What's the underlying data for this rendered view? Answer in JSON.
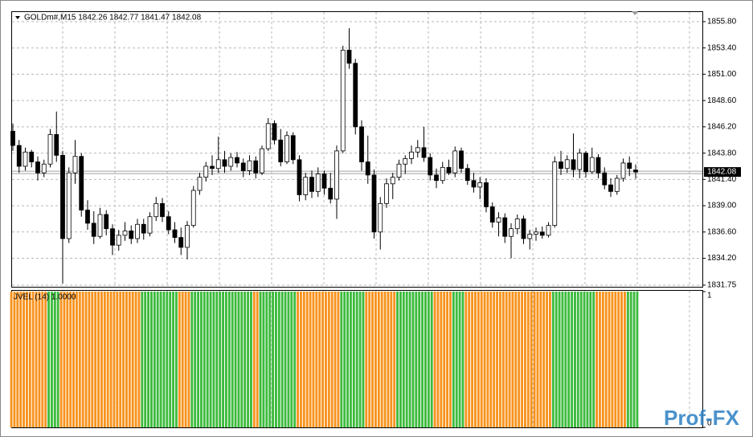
{
  "chart_data": [
    {
      "type": "candlestick",
      "title": "GOLDm#,M15  1842.26 1842.77 1841.47 1842.08",
      "ohlc": [
        [
          1845.8,
          1846.5,
          1844.0,
          1844.5
        ],
        [
          1844.5,
          1845.0,
          1842.0,
          1842.6
        ],
        [
          1842.6,
          1844.3,
          1842.2,
          1843.9
        ],
        [
          1843.9,
          1844.1,
          1842.5,
          1843.0
        ],
        [
          1843.0,
          1843.5,
          1841.3,
          1842.0
        ],
        [
          1842.0,
          1843.2,
          1841.6,
          1842.8
        ],
        [
          1842.8,
          1846.0,
          1842.5,
          1845.5
        ],
        [
          1845.5,
          1847.6,
          1843.0,
          1843.6
        ],
        [
          1843.6,
          1844.0,
          1831.9,
          1836.0
        ],
        [
          1836.0,
          1842.5,
          1835.6,
          1842.0
        ],
        [
          1842.0,
          1845.0,
          1841.0,
          1843.5
        ],
        [
          1843.5,
          1843.8,
          1838.0,
          1838.6
        ],
        [
          1838.6,
          1839.5,
          1836.8,
          1837.4
        ],
        [
          1837.4,
          1838.5,
          1835.5,
          1836.2
        ],
        [
          1836.2,
          1838.8,
          1836.0,
          1838.2
        ],
        [
          1838.2,
          1838.6,
          1836.3,
          1836.9
        ],
        [
          1836.9,
          1837.3,
          1834.5,
          1835.4
        ],
        [
          1835.4,
          1836.8,
          1834.9,
          1836.3
        ],
        [
          1836.3,
          1837.5,
          1835.8,
          1836.7
        ],
        [
          1836.7,
          1837.2,
          1835.5,
          1836.0
        ],
        [
          1836.0,
          1837.8,
          1835.6,
          1837.3
        ],
        [
          1837.3,
          1837.8,
          1835.9,
          1836.5
        ],
        [
          1836.5,
          1838.4,
          1836.2,
          1838.0
        ],
        [
          1838.0,
          1839.8,
          1837.6,
          1839.2
        ],
        [
          1839.2,
          1839.7,
          1837.5,
          1838.0
        ],
        [
          1838.0,
          1838.5,
          1836.4,
          1836.8
        ],
        [
          1836.8,
          1837.5,
          1835.6,
          1836.1
        ],
        [
          1836.1,
          1837.0,
          1834.5,
          1835.2
        ],
        [
          1835.2,
          1837.6,
          1834.1,
          1837.2
        ],
        [
          1837.2,
          1840.8,
          1837.0,
          1840.4
        ],
        [
          1840.4,
          1842.0,
          1840.0,
          1841.6
        ],
        [
          1841.6,
          1843.0,
          1841.2,
          1842.6
        ],
        [
          1842.6,
          1843.6,
          1841.8,
          1842.4
        ],
        [
          1842.4,
          1845.3,
          1842.0,
          1843.2
        ],
        [
          1843.2,
          1844.0,
          1842.0,
          1842.6
        ],
        [
          1842.6,
          1843.8,
          1842.2,
          1843.4
        ],
        [
          1843.4,
          1843.9,
          1842.5,
          1842.9
        ],
        [
          1842.9,
          1843.3,
          1841.6,
          1842.2
        ],
        [
          1842.2,
          1843.6,
          1841.8,
          1843.1
        ],
        [
          1843.1,
          1843.5,
          1841.5,
          1842.0
        ],
        [
          1842.0,
          1844.5,
          1841.8,
          1844.2
        ],
        [
          1844.2,
          1847.0,
          1844.0,
          1846.5
        ],
        [
          1846.5,
          1846.8,
          1844.6,
          1845.0
        ],
        [
          1845.0,
          1846.0,
          1842.6,
          1843.0
        ],
        [
          1843.0,
          1845.8,
          1842.8,
          1845.4
        ],
        [
          1845.4,
          1845.7,
          1842.8,
          1843.2
        ],
        [
          1843.2,
          1843.6,
          1839.4,
          1840.0
        ],
        [
          1840.0,
          1842.0,
          1839.5,
          1841.6
        ],
        [
          1841.6,
          1842.2,
          1839.7,
          1840.3
        ],
        [
          1840.3,
          1842.5,
          1839.8,
          1841.9
        ],
        [
          1841.9,
          1842.2,
          1840.0,
          1840.6
        ],
        [
          1840.6,
          1842.0,
          1839.2,
          1839.6
        ],
        [
          1839.6,
          1844.5,
          1837.8,
          1844.0
        ],
        [
          1844.0,
          1853.6,
          1843.8,
          1853.2
        ],
        [
          1853.2,
          1855.2,
          1851.5,
          1852.0
        ],
        [
          1852.0,
          1852.4,
          1845.5,
          1846.2
        ],
        [
          1846.2,
          1846.8,
          1842.2,
          1843.0
        ],
        [
          1843.0,
          1845.4,
          1841.0,
          1841.8
        ],
        [
          1841.8,
          1842.3,
          1836.0,
          1836.6
        ],
        [
          1836.6,
          1839.8,
          1835.0,
          1839.2
        ],
        [
          1839.2,
          1841.5,
          1838.8,
          1841.0
        ],
        [
          1841.0,
          1842.0,
          1839.6,
          1841.6
        ],
        [
          1841.6,
          1843.2,
          1841.3,
          1842.8
        ],
        [
          1842.8,
          1843.6,
          1841.9,
          1843.3
        ],
        [
          1843.3,
          1844.5,
          1842.8,
          1843.9
        ],
        [
          1843.9,
          1845.0,
          1843.4,
          1844.3
        ],
        [
          1844.3,
          1846.2,
          1843.0,
          1843.4
        ],
        [
          1843.4,
          1843.8,
          1841.3,
          1841.8
        ],
        [
          1841.8,
          1842.4,
          1840.6,
          1841.3
        ],
        [
          1841.3,
          1843.0,
          1841.0,
          1842.5
        ],
        [
          1842.5,
          1843.2,
          1841.8,
          1842.0
        ],
        [
          1842.0,
          1844.4,
          1841.6,
          1844.0
        ],
        [
          1844.0,
          1844.3,
          1842.0,
          1842.4
        ],
        [
          1842.4,
          1842.8,
          1840.9,
          1841.3
        ],
        [
          1841.3,
          1842.0,
          1840.2,
          1840.7
        ],
        [
          1840.7,
          1841.6,
          1839.6,
          1841.1
        ],
        [
          1841.1,
          1841.5,
          1838.4,
          1838.9
        ],
        [
          1838.9,
          1839.3,
          1837.0,
          1837.5
        ],
        [
          1837.5,
          1838.4,
          1836.2,
          1837.9
        ],
        [
          1837.9,
          1838.3,
          1835.6,
          1836.2
        ],
        [
          1836.2,
          1837.4,
          1834.2,
          1836.9
        ],
        [
          1836.9,
          1838.2,
          1836.4,
          1837.8
        ],
        [
          1837.8,
          1838.1,
          1835.5,
          1836.0
        ],
        [
          1836.0,
          1836.8,
          1835.0,
          1836.4
        ],
        [
          1836.4,
          1837.0,
          1835.8,
          1836.6
        ],
        [
          1836.6,
          1837.1,
          1836.0,
          1836.3
        ],
        [
          1836.3,
          1837.5,
          1836.1,
          1837.2
        ],
        [
          1837.2,
          1843.5,
          1837.0,
          1843.0
        ],
        [
          1843.0,
          1844.0,
          1841.8,
          1842.4
        ],
        [
          1842.4,
          1843.6,
          1842.0,
          1843.2
        ],
        [
          1843.2,
          1845.6,
          1841.6,
          1842.3
        ],
        [
          1842.3,
          1844.2,
          1841.5,
          1843.8
        ],
        [
          1843.8,
          1844.0,
          1841.6,
          1842.1
        ],
        [
          1842.1,
          1844.3,
          1841.9,
          1843.4
        ],
        [
          1843.4,
          1843.7,
          1841.5,
          1842.0
        ],
        [
          1842.0,
          1842.5,
          1840.5,
          1840.9
        ],
        [
          1840.9,
          1841.5,
          1839.8,
          1840.3
        ],
        [
          1840.3,
          1841.8,
          1840.0,
          1841.5
        ],
        [
          1841.5,
          1843.3,
          1841.2,
          1842.9
        ],
        [
          1842.9,
          1843.5,
          1841.7,
          1842.4
        ],
        [
          1842.26,
          1842.77,
          1841.47,
          1842.08
        ]
      ],
      "up_color": "#ffffff",
      "down_color": "#000000",
      "last_price": 1842.08,
      "ylim": [
        1831.6,
        1856.75
      ],
      "yticks": [
        {
          "value": 1855.8,
          "label": "1855.80"
        },
        {
          "value": 1853.4,
          "label": "1853.40"
        },
        {
          "value": 1851,
          "label": "1851.00"
        },
        {
          "value": 1848.6,
          "label": "1848.60"
        },
        {
          "value": 1846.2,
          "label": "1846.20"
        },
        {
          "value": 1843.8,
          "label": "1843.80"
        },
        {
          "value": 1841.4,
          "label": "1841.40"
        },
        {
          "value": 1839,
          "label": "1839.00"
        },
        {
          "value": 1836.6,
          "label": "1836.60"
        },
        {
          "value": 1834.2,
          "label": "1834.20"
        },
        1831.75
      ],
      "grid": true
    },
    {
      "type": "bar",
      "title": "JVEL (14) 1.0000",
      "values": [
        1,
        1,
        1,
        1,
        1,
        1,
        1,
        1,
        1,
        1,
        1,
        1,
        1,
        1,
        1,
        1,
        1,
        1,
        1,
        1,
        1,
        1,
        1,
        1,
        1,
        1,
        1,
        1,
        1,
        1,
        1,
        1,
        1,
        1,
        1,
        1,
        1,
        1,
        1,
        1,
        1,
        1,
        1,
        1,
        1,
        1,
        1,
        1,
        1,
        1,
        1,
        1,
        1,
        1,
        1,
        1,
        1,
        1,
        1,
        1,
        1,
        1,
        1,
        1,
        1,
        1,
        1,
        1,
        1,
        1,
        1,
        1,
        1,
        1,
        1,
        1,
        1,
        1,
        1,
        1,
        1,
        1,
        1,
        1,
        1,
        1,
        1,
        1,
        1,
        1,
        1,
        1,
        1,
        1,
        1,
        1,
        1,
        1,
        1,
        1,
        1
      ],
      "colors": [
        "#f7931e",
        "#f7931e",
        "#f7931e",
        "#f7931e",
        "#f7931e",
        "#f7931e",
        "#3dbb3d",
        "#3dbb3d",
        "#f7931e",
        "#f7931e",
        "#f7931e",
        "#f7931e",
        "#f7931e",
        "#f7931e",
        "#f7931e",
        "#f7931e",
        "#f7931e",
        "#f7931e",
        "#f7931e",
        "#f7931e",
        "#f7931e",
        "#3dbb3d",
        "#3dbb3d",
        "#3dbb3d",
        "#3dbb3d",
        "#3dbb3d",
        "#3dbb3d",
        "#f7931e",
        "#f7931e",
        "#3dbb3d",
        "#3dbb3d",
        "#3dbb3d",
        "#3dbb3d",
        "#3dbb3d",
        "#3dbb3d",
        "#3dbb3d",
        "#3dbb3d",
        "#3dbb3d",
        "#3dbb3d",
        "#f7931e",
        "#3dbb3d",
        "#3dbb3d",
        "#3dbb3d",
        "#3dbb3d",
        "#3dbb3d",
        "#3dbb3d",
        "#f7931e",
        "#f7931e",
        "#f7931e",
        "#f7931e",
        "#f7931e",
        "#f7931e",
        "#f7931e",
        "#3dbb3d",
        "#3dbb3d",
        "#3dbb3d",
        "#3dbb3d",
        "#f7931e",
        "#f7931e",
        "#f7931e",
        "#f7931e",
        "#f7931e",
        "#3dbb3d",
        "#3dbb3d",
        "#3dbb3d",
        "#3dbb3d",
        "#3dbb3d",
        "#3dbb3d",
        "#f7931e",
        "#f7931e",
        "#f7931e",
        "#3dbb3d",
        "#3dbb3d",
        "#f7931e",
        "#f7931e",
        "#f7931e",
        "#f7931e",
        "#f7931e",
        "#f7931e",
        "#f7931e",
        "#f7931e",
        "#f7931e",
        "#f7931e",
        "#f7931e",
        "#f7931e",
        "#f7931e",
        "#f7931e",
        "#3dbb3d",
        "#3dbb3d",
        "#3dbb3d",
        "#3dbb3d",
        "#3dbb3d",
        "#3dbb3d",
        "#3dbb3d",
        "#f7931e",
        "#f7931e",
        "#f7931e",
        "#f7931e",
        "#f7931e",
        "#3dbb3d",
        "#3dbb3d"
      ],
      "ylim": [
        0,
        1
      ],
      "yticks": [
        0,
        1
      ]
    }
  ],
  "watermark": "Prof-FX"
}
